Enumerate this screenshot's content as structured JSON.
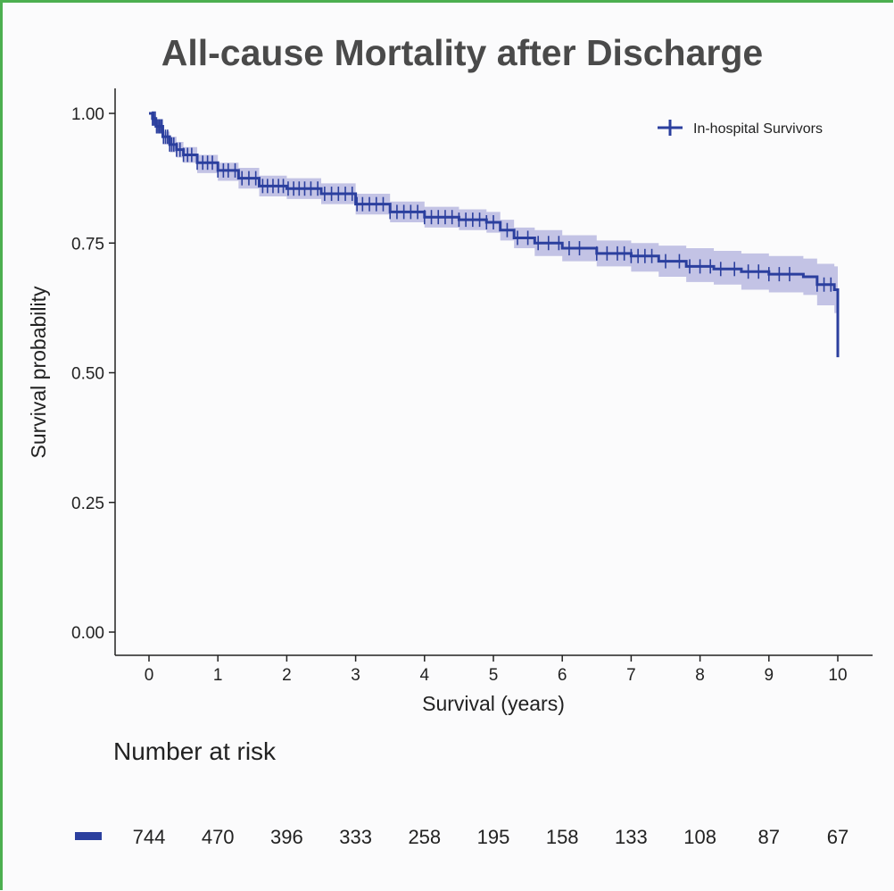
{
  "chart_data": {
    "type": "line",
    "title": "All-cause Mortality after Discharge",
    "xlabel": "Survival (years)",
    "ylabel": "Survival probability",
    "xlim": [
      0,
      10
    ],
    "ylim": [
      0,
      1
    ],
    "x_ticks": [
      "0",
      "1",
      "2",
      "3",
      "4",
      "5",
      "6",
      "7",
      "8",
      "9",
      "10"
    ],
    "y_ticks": [
      "0.00",
      "0.25",
      "0.50",
      "0.75",
      "1.00"
    ],
    "grid": false,
    "legend_position": "top-right",
    "series": [
      {
        "name": "In-hospital Survivors",
        "color": "#2b3f9e",
        "ci_color": "#b9b8e0",
        "x": [
          0,
          0.05,
          0.1,
          0.2,
          0.3,
          0.4,
          0.5,
          0.7,
          1.0,
          1.3,
          1.6,
          2.0,
          2.5,
          3.0,
          3.5,
          4.0,
          4.5,
          4.9,
          5.1,
          5.3,
          5.6,
          6.0,
          6.5,
          7.0,
          7.4,
          7.8,
          8.2,
          8.6,
          9.0,
          9.5,
          9.7,
          9.95,
          10.0
        ],
        "y": [
          1.0,
          0.99,
          0.975,
          0.955,
          0.94,
          0.93,
          0.92,
          0.905,
          0.89,
          0.875,
          0.86,
          0.855,
          0.845,
          0.825,
          0.81,
          0.8,
          0.795,
          0.79,
          0.775,
          0.76,
          0.75,
          0.74,
          0.73,
          0.725,
          0.715,
          0.705,
          0.7,
          0.695,
          0.69,
          0.685,
          0.67,
          0.66,
          0.53
        ],
        "lower": [
          1.0,
          0.985,
          0.965,
          0.94,
          0.925,
          0.915,
          0.905,
          0.885,
          0.87,
          0.855,
          0.84,
          0.835,
          0.825,
          0.805,
          0.79,
          0.78,
          0.775,
          0.77,
          0.755,
          0.74,
          0.725,
          0.715,
          0.705,
          0.695,
          0.685,
          0.675,
          0.67,
          0.66,
          0.655,
          0.65,
          0.63,
          0.615,
          0.615
        ],
        "upper": [
          1.0,
          0.995,
          0.985,
          0.965,
          0.955,
          0.945,
          0.935,
          0.92,
          0.905,
          0.895,
          0.88,
          0.875,
          0.865,
          0.845,
          0.83,
          0.82,
          0.815,
          0.81,
          0.795,
          0.78,
          0.775,
          0.765,
          0.755,
          0.75,
          0.745,
          0.74,
          0.735,
          0.73,
          0.725,
          0.72,
          0.71,
          0.705,
          0.705
        ]
      }
    ],
    "censor_x": [
      0.05,
      0.07,
      0.09,
      0.11,
      0.13,
      0.15,
      0.17,
      0.19,
      0.21,
      0.24,
      0.27,
      0.3,
      0.33,
      0.36,
      0.4,
      0.45,
      0.5,
      0.56,
      0.62,
      0.7,
      0.78,
      0.85,
      0.92,
      1.0,
      1.08,
      1.15,
      1.25,
      1.35,
      1.45,
      1.55,
      1.65,
      1.72,
      1.8,
      1.88,
      1.95,
      2.02,
      2.1,
      2.18,
      2.26,
      2.35,
      2.45,
      2.55,
      2.65,
      2.75,
      2.85,
      2.95,
      3.02,
      3.1,
      3.2,
      3.3,
      3.4,
      3.5,
      3.6,
      3.7,
      3.8,
      3.9,
      4.0,
      4.1,
      4.2,
      4.3,
      4.4,
      4.5,
      4.6,
      4.7,
      4.8,
      4.9,
      5.0,
      5.2,
      5.35,
      5.5,
      5.65,
      5.8,
      5.95,
      6.1,
      6.25,
      6.5,
      6.65,
      6.8,
      6.9,
      7.0,
      7.1,
      7.2,
      7.3,
      7.5,
      7.7,
      7.85,
      8.0,
      8.15,
      8.3,
      8.5,
      8.7,
      8.85,
      9.0,
      9.15,
      9.3,
      9.7,
      9.8,
      9.9
    ]
  },
  "risk_table": {
    "title": "Number at risk",
    "strata_color": "#2b3f9e",
    "values": [
      "744",
      "470",
      "396",
      "333",
      "258",
      "195",
      "158",
      "133",
      "108",
      "87",
      "67"
    ]
  }
}
